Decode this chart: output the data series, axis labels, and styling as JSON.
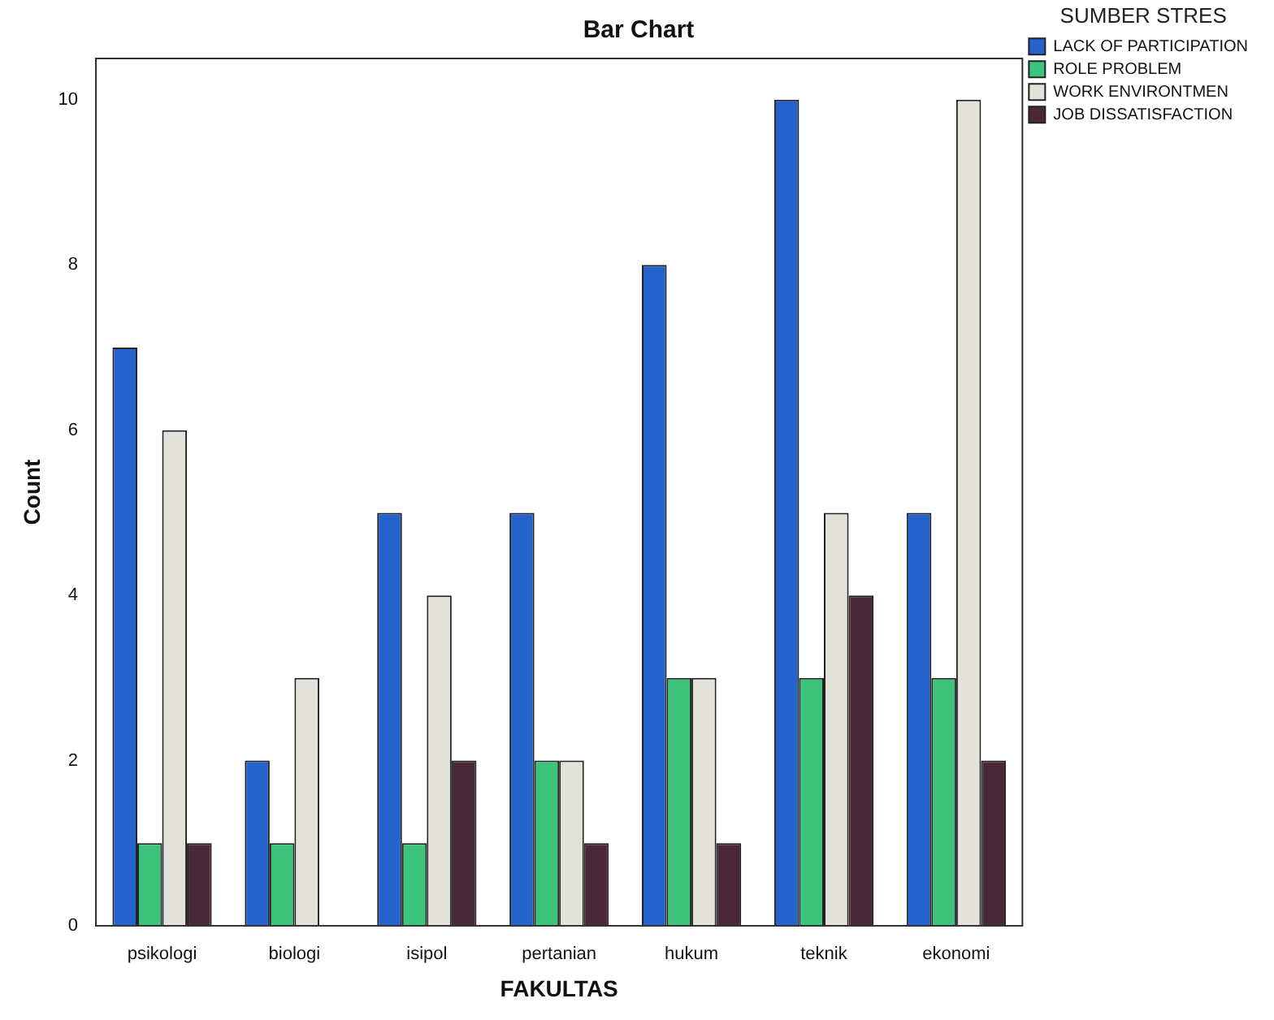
{
  "chart_data": {
    "type": "bar",
    "title": "Bar Chart",
    "xlabel": "FAKULTAS",
    "ylabel": "Count",
    "legend_title": "SUMBER STRES",
    "categories": [
      "psikologi",
      "biologi",
      "isipol",
      "pertanian",
      "hukum",
      "teknik",
      "ekonomi"
    ],
    "series": [
      {
        "name": "LACK OF PARTICIPATION",
        "color": "#2462cc",
        "values": [
          7,
          2,
          5,
          5,
          8,
          10,
          5
        ]
      },
      {
        "name": "ROLE PROBLEM",
        "color": "#3cc47c",
        "values": [
          1,
          1,
          1,
          2,
          3,
          3,
          3
        ]
      },
      {
        "name": "WORK ENVIRONTMEN",
        "color": "#e2e2da",
        "values": [
          6,
          3,
          4,
          2,
          3,
          5,
          10
        ]
      },
      {
        "name": "JOB DISSATISFACTION",
        "color": "#4a2838",
        "values": [
          1,
          null,
          2,
          1,
          1,
          4,
          2
        ]
      }
    ],
    "ylim": [
      0,
      10.5
    ],
    "yticks": [
      0,
      2,
      4,
      6,
      8,
      10
    ],
    "grid": false,
    "legend": "right"
  }
}
